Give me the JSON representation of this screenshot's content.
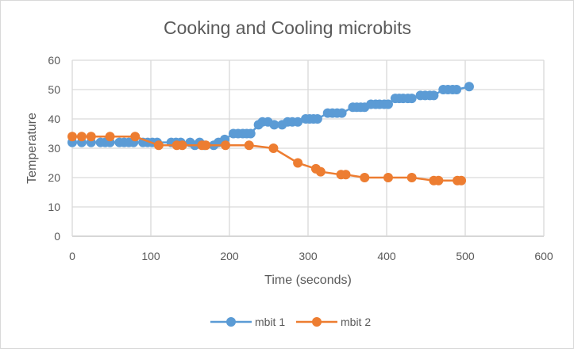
{
  "chart_data": {
    "type": "line",
    "title": "Cooking and Cooling microbits",
    "xlabel": "Time (seconds)",
    "ylabel": "Temperature",
    "xlim": [
      0,
      600
    ],
    "ylim": [
      0,
      60
    ],
    "xticks": [
      0,
      100,
      200,
      300,
      400,
      500,
      600
    ],
    "yticks": [
      0,
      10,
      20,
      30,
      40,
      50,
      60
    ],
    "grid": true,
    "legend": "bottom",
    "series": [
      {
        "name": "mbit 1",
        "color": "#5b9bd5",
        "x": [
          0,
          12,
          24,
          36,
          42,
          48,
          60,
          66,
          72,
          78,
          90,
          96,
          102,
          108,
          126,
          132,
          138,
          150,
          156,
          162,
          168,
          180,
          186,
          194,
          205,
          211,
          217,
          222,
          227,
          237,
          242,
          249,
          257,
          267,
          274,
          280,
          287,
          297,
          302,
          307,
          312,
          325,
          331,
          337,
          343,
          357,
          362,
          367,
          372,
          380,
          386,
          391,
          397,
          402,
          411,
          416,
          421,
          427,
          432,
          443,
          449,
          455,
          460,
          472,
          478,
          484,
          489,
          505
        ],
        "y": [
          32,
          32,
          32,
          32,
          32,
          32,
          32,
          32,
          32,
          32,
          32,
          32,
          32,
          32,
          32,
          32,
          32,
          32,
          31,
          32,
          31,
          31,
          32,
          33,
          35,
          35,
          35,
          35,
          35,
          38,
          39,
          39,
          38,
          38,
          39,
          39,
          39,
          40,
          40,
          40,
          40,
          42,
          42,
          42,
          42,
          44,
          44,
          44,
          44,
          45,
          45,
          45,
          45,
          45,
          47,
          47,
          47,
          47,
          47,
          48,
          48,
          48,
          48,
          50,
          50,
          50,
          50,
          51
        ]
      },
      {
        "name": "mbit 2",
        "color": "#ed7d31",
        "x": [
          0,
          12,
          24,
          48,
          80,
          110,
          133,
          140,
          165,
          170,
          195,
          225,
          256,
          287,
          310,
          316,
          342,
          348,
          372,
          402,
          432,
          460,
          466,
          490,
          495
        ],
        "y": [
          34,
          34,
          34,
          34,
          34,
          31,
          31,
          31,
          31,
          31,
          31,
          31,
          30,
          25,
          23,
          22,
          21,
          21,
          20,
          20,
          20,
          19,
          19,
          19,
          19
        ]
      }
    ]
  }
}
